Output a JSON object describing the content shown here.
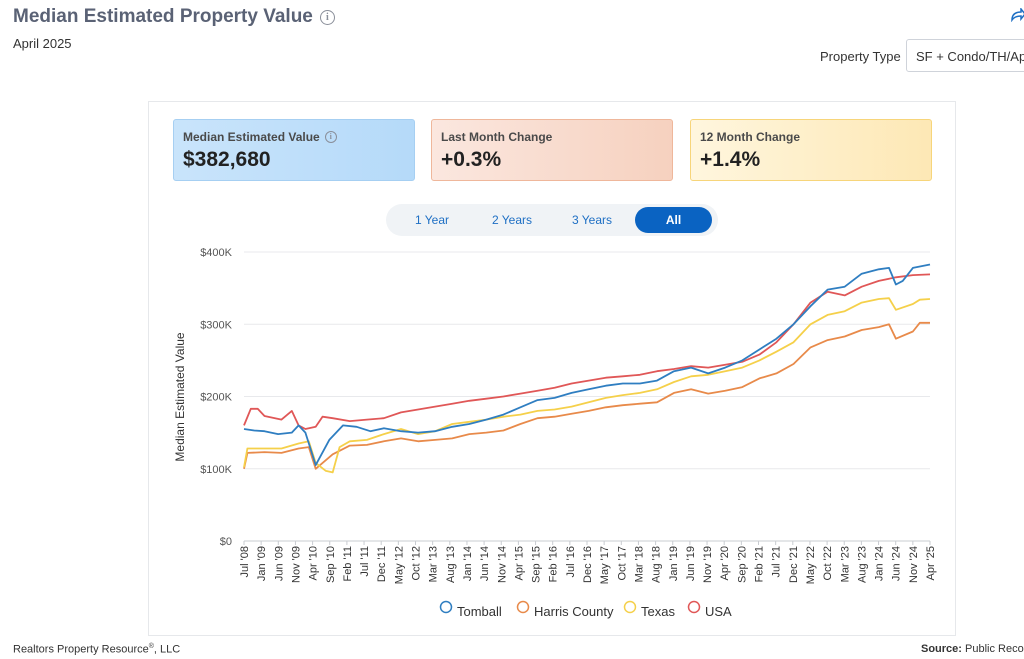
{
  "header": {
    "title": "Median Estimated Property Value",
    "subtitle": "April 2025",
    "property_type_label": "Property Type",
    "property_type_value": "SF + Condo/TH/Ap"
  },
  "cards": [
    {
      "label": "Median Estimated Value",
      "value": "$382,680"
    },
    {
      "label": "Last Month Change",
      "value": "+0.3%"
    },
    {
      "label": "12 Month Change",
      "value": "+1.4%"
    }
  ],
  "tabs": [
    "1 Year",
    "2 Years",
    "3 Years",
    "All"
  ],
  "active_tab": "All",
  "footer": {
    "left": "Realtors Property Resource",
    "left_reg": "®",
    "left_suffix": ", LLC",
    "source_label": "Source:",
    "source_value": "Public Records"
  },
  "colors": {
    "Tomball": "#2f7ec1",
    "Harris County": "#e88a4a",
    "Texas": "#f5d04a",
    "USA": "#e05757"
  },
  "chart_data": {
    "type": "line",
    "ylabel": "Median Estimated Value",
    "yticks": [
      "$0",
      "$100K",
      "$200K",
      "$300K",
      "$400K"
    ],
    "ylim": [
      0,
      400000
    ],
    "xticks": [
      "Jul '08",
      "Jan '09",
      "Jun '09",
      "Nov '09",
      "Apr '10",
      "Sep '10",
      "Feb '11",
      "Jul '11",
      "Dec '11",
      "May '12",
      "Oct '12",
      "Mar '13",
      "Aug '13",
      "Jan '14",
      "Jun '14",
      "Nov '14",
      "Apr '15",
      "Sep '15",
      "Feb '16",
      "Jul '16",
      "Dec '16",
      "May '17",
      "Oct '17",
      "Mar '18",
      "Aug '18",
      "Jan '19",
      "Jun '19",
      "Nov '19",
      "Apr '20",
      "Sep '20",
      "Feb '21",
      "Jul '21",
      "Dec '21",
      "May '22",
      "Oct '22",
      "Mar '23",
      "Aug '23",
      "Jan '24",
      "Jun '24",
      "Nov '24",
      "Apr '25"
    ],
    "x_range": [
      "2008-07",
      "2025-04"
    ],
    "legend_position": "bottom",
    "series": [
      {
        "name": "Tomball",
        "points": [
          [
            "2008-07",
            155000
          ],
          [
            "2008-10",
            153000
          ],
          [
            "2009-01",
            152000
          ],
          [
            "2009-05",
            148000
          ],
          [
            "2009-09",
            150000
          ],
          [
            "2009-11",
            160000
          ],
          [
            "2010-01",
            150000
          ],
          [
            "2010-04",
            105000
          ],
          [
            "2010-08",
            140000
          ],
          [
            "2010-12",
            160000
          ],
          [
            "2011-04",
            158000
          ],
          [
            "2011-08",
            152000
          ],
          [
            "2011-12",
            156000
          ],
          [
            "2012-05",
            152000
          ],
          [
            "2012-10",
            150000
          ],
          [
            "2013-03",
            152000
          ],
          [
            "2013-08",
            158000
          ],
          [
            "2014-01",
            162000
          ],
          [
            "2014-06",
            168000
          ],
          [
            "2014-11",
            175000
          ],
          [
            "2015-04",
            185000
          ],
          [
            "2015-09",
            195000
          ],
          [
            "2016-02",
            198000
          ],
          [
            "2016-07",
            205000
          ],
          [
            "2016-12",
            210000
          ],
          [
            "2017-05",
            215000
          ],
          [
            "2017-10",
            218000
          ],
          [
            "2018-03",
            218000
          ],
          [
            "2018-08",
            222000
          ],
          [
            "2019-01",
            235000
          ],
          [
            "2019-06",
            240000
          ],
          [
            "2019-11",
            232000
          ],
          [
            "2020-04",
            240000
          ],
          [
            "2020-09",
            250000
          ],
          [
            "2021-02",
            265000
          ],
          [
            "2021-07",
            280000
          ],
          [
            "2021-12",
            300000
          ],
          [
            "2022-05",
            325000
          ],
          [
            "2022-10",
            348000
          ],
          [
            "2023-03",
            352000
          ],
          [
            "2023-08",
            370000
          ],
          [
            "2024-01",
            376000
          ],
          [
            "2024-04",
            378000
          ],
          [
            "2024-06",
            355000
          ],
          [
            "2024-08",
            360000
          ],
          [
            "2024-11",
            378000
          ],
          [
            "2025-04",
            382680
          ]
        ]
      },
      {
        "name": "Harris County",
        "points": [
          [
            "2008-07",
            100000
          ],
          [
            "2008-08",
            122000
          ],
          [
            "2009-01",
            123000
          ],
          [
            "2009-06",
            122000
          ],
          [
            "2009-11",
            128000
          ],
          [
            "2010-02",
            130000
          ],
          [
            "2010-04",
            100000
          ],
          [
            "2010-09",
            120000
          ],
          [
            "2011-02",
            132000
          ],
          [
            "2011-07",
            133000
          ],
          [
            "2011-12",
            138000
          ],
          [
            "2012-05",
            142000
          ],
          [
            "2012-10",
            138000
          ],
          [
            "2013-03",
            140000
          ],
          [
            "2013-08",
            142000
          ],
          [
            "2014-01",
            148000
          ],
          [
            "2014-06",
            150000
          ],
          [
            "2014-11",
            153000
          ],
          [
            "2015-04",
            162000
          ],
          [
            "2015-09",
            170000
          ],
          [
            "2016-02",
            172000
          ],
          [
            "2016-07",
            176000
          ],
          [
            "2016-12",
            180000
          ],
          [
            "2017-05",
            185000
          ],
          [
            "2017-10",
            188000
          ],
          [
            "2018-03",
            190000
          ],
          [
            "2018-08",
            192000
          ],
          [
            "2019-01",
            205000
          ],
          [
            "2019-06",
            210000
          ],
          [
            "2019-11",
            204000
          ],
          [
            "2020-04",
            208000
          ],
          [
            "2020-09",
            213000
          ],
          [
            "2021-02",
            225000
          ],
          [
            "2021-07",
            232000
          ],
          [
            "2021-12",
            245000
          ],
          [
            "2022-05",
            268000
          ],
          [
            "2022-10",
            278000
          ],
          [
            "2023-03",
            283000
          ],
          [
            "2023-08",
            292000
          ],
          [
            "2024-01",
            296000
          ],
          [
            "2024-04",
            300000
          ],
          [
            "2024-06",
            280000
          ],
          [
            "2024-11",
            290000
          ],
          [
            "2025-01",
            302000
          ],
          [
            "2025-04",
            302000
          ]
        ]
      },
      {
        "name": "Texas",
        "points": [
          [
            "2008-07",
            102000
          ],
          [
            "2008-08",
            128000
          ],
          [
            "2009-01",
            128000
          ],
          [
            "2009-06",
            128000
          ],
          [
            "2009-11",
            135000
          ],
          [
            "2010-02",
            138000
          ],
          [
            "2010-04",
            108000
          ],
          [
            "2010-07",
            97000
          ],
          [
            "2010-09",
            95000
          ],
          [
            "2010-11",
            130000
          ],
          [
            "2011-02",
            138000
          ],
          [
            "2011-07",
            140000
          ],
          [
            "2011-12",
            148000
          ],
          [
            "2012-05",
            155000
          ],
          [
            "2012-10",
            148000
          ],
          [
            "2013-03",
            152000
          ],
          [
            "2013-08",
            162000
          ],
          [
            "2014-01",
            165000
          ],
          [
            "2014-06",
            168000
          ],
          [
            "2014-11",
            172000
          ],
          [
            "2015-04",
            175000
          ],
          [
            "2015-09",
            180000
          ],
          [
            "2016-02",
            182000
          ],
          [
            "2016-07",
            186000
          ],
          [
            "2016-12",
            192000
          ],
          [
            "2017-05",
            198000
          ],
          [
            "2017-10",
            202000
          ],
          [
            "2018-03",
            205000
          ],
          [
            "2018-08",
            210000
          ],
          [
            "2019-01",
            220000
          ],
          [
            "2019-06",
            228000
          ],
          [
            "2019-11",
            230000
          ],
          [
            "2020-04",
            235000
          ],
          [
            "2020-09",
            240000
          ],
          [
            "2021-02",
            250000
          ],
          [
            "2021-07",
            262000
          ],
          [
            "2021-12",
            275000
          ],
          [
            "2022-05",
            300000
          ],
          [
            "2022-10",
            313000
          ],
          [
            "2023-03",
            318000
          ],
          [
            "2023-08",
            330000
          ],
          [
            "2024-01",
            335000
          ],
          [
            "2024-04",
            336000
          ],
          [
            "2024-06",
            320000
          ],
          [
            "2024-11",
            328000
          ],
          [
            "2025-01",
            334000
          ],
          [
            "2025-04",
            335000
          ]
        ]
      },
      {
        "name": "USA",
        "points": [
          [
            "2008-07",
            160000
          ],
          [
            "2008-09",
            183000
          ],
          [
            "2008-11",
            183000
          ],
          [
            "2009-01",
            173000
          ],
          [
            "2009-06",
            168000
          ],
          [
            "2009-09",
            180000
          ],
          [
            "2009-11",
            160000
          ],
          [
            "2010-01",
            155000
          ],
          [
            "2010-04",
            158000
          ],
          [
            "2010-06",
            172000
          ],
          [
            "2010-09",
            170000
          ],
          [
            "2011-02",
            166000
          ],
          [
            "2011-07",
            168000
          ],
          [
            "2011-12",
            170000
          ],
          [
            "2012-05",
            178000
          ],
          [
            "2012-10",
            182000
          ],
          [
            "2013-03",
            186000
          ],
          [
            "2013-08",
            190000
          ],
          [
            "2014-01",
            194000
          ],
          [
            "2014-06",
            197000
          ],
          [
            "2014-11",
            200000
          ],
          [
            "2015-04",
            204000
          ],
          [
            "2015-09",
            208000
          ],
          [
            "2016-02",
            212000
          ],
          [
            "2016-07",
            218000
          ],
          [
            "2016-12",
            222000
          ],
          [
            "2017-05",
            226000
          ],
          [
            "2017-10",
            228000
          ],
          [
            "2018-03",
            230000
          ],
          [
            "2018-08",
            235000
          ],
          [
            "2019-01",
            238000
          ],
          [
            "2019-06",
            242000
          ],
          [
            "2019-11",
            240000
          ],
          [
            "2020-04",
            244000
          ],
          [
            "2020-09",
            248000
          ],
          [
            "2021-02",
            258000
          ],
          [
            "2021-07",
            275000
          ],
          [
            "2021-12",
            300000
          ],
          [
            "2022-05",
            330000
          ],
          [
            "2022-10",
            345000
          ],
          [
            "2023-03",
            340000
          ],
          [
            "2023-08",
            352000
          ],
          [
            "2024-01",
            360000
          ],
          [
            "2024-06",
            365000
          ],
          [
            "2024-11",
            368000
          ],
          [
            "2025-04",
            369000
          ]
        ]
      }
    ]
  }
}
